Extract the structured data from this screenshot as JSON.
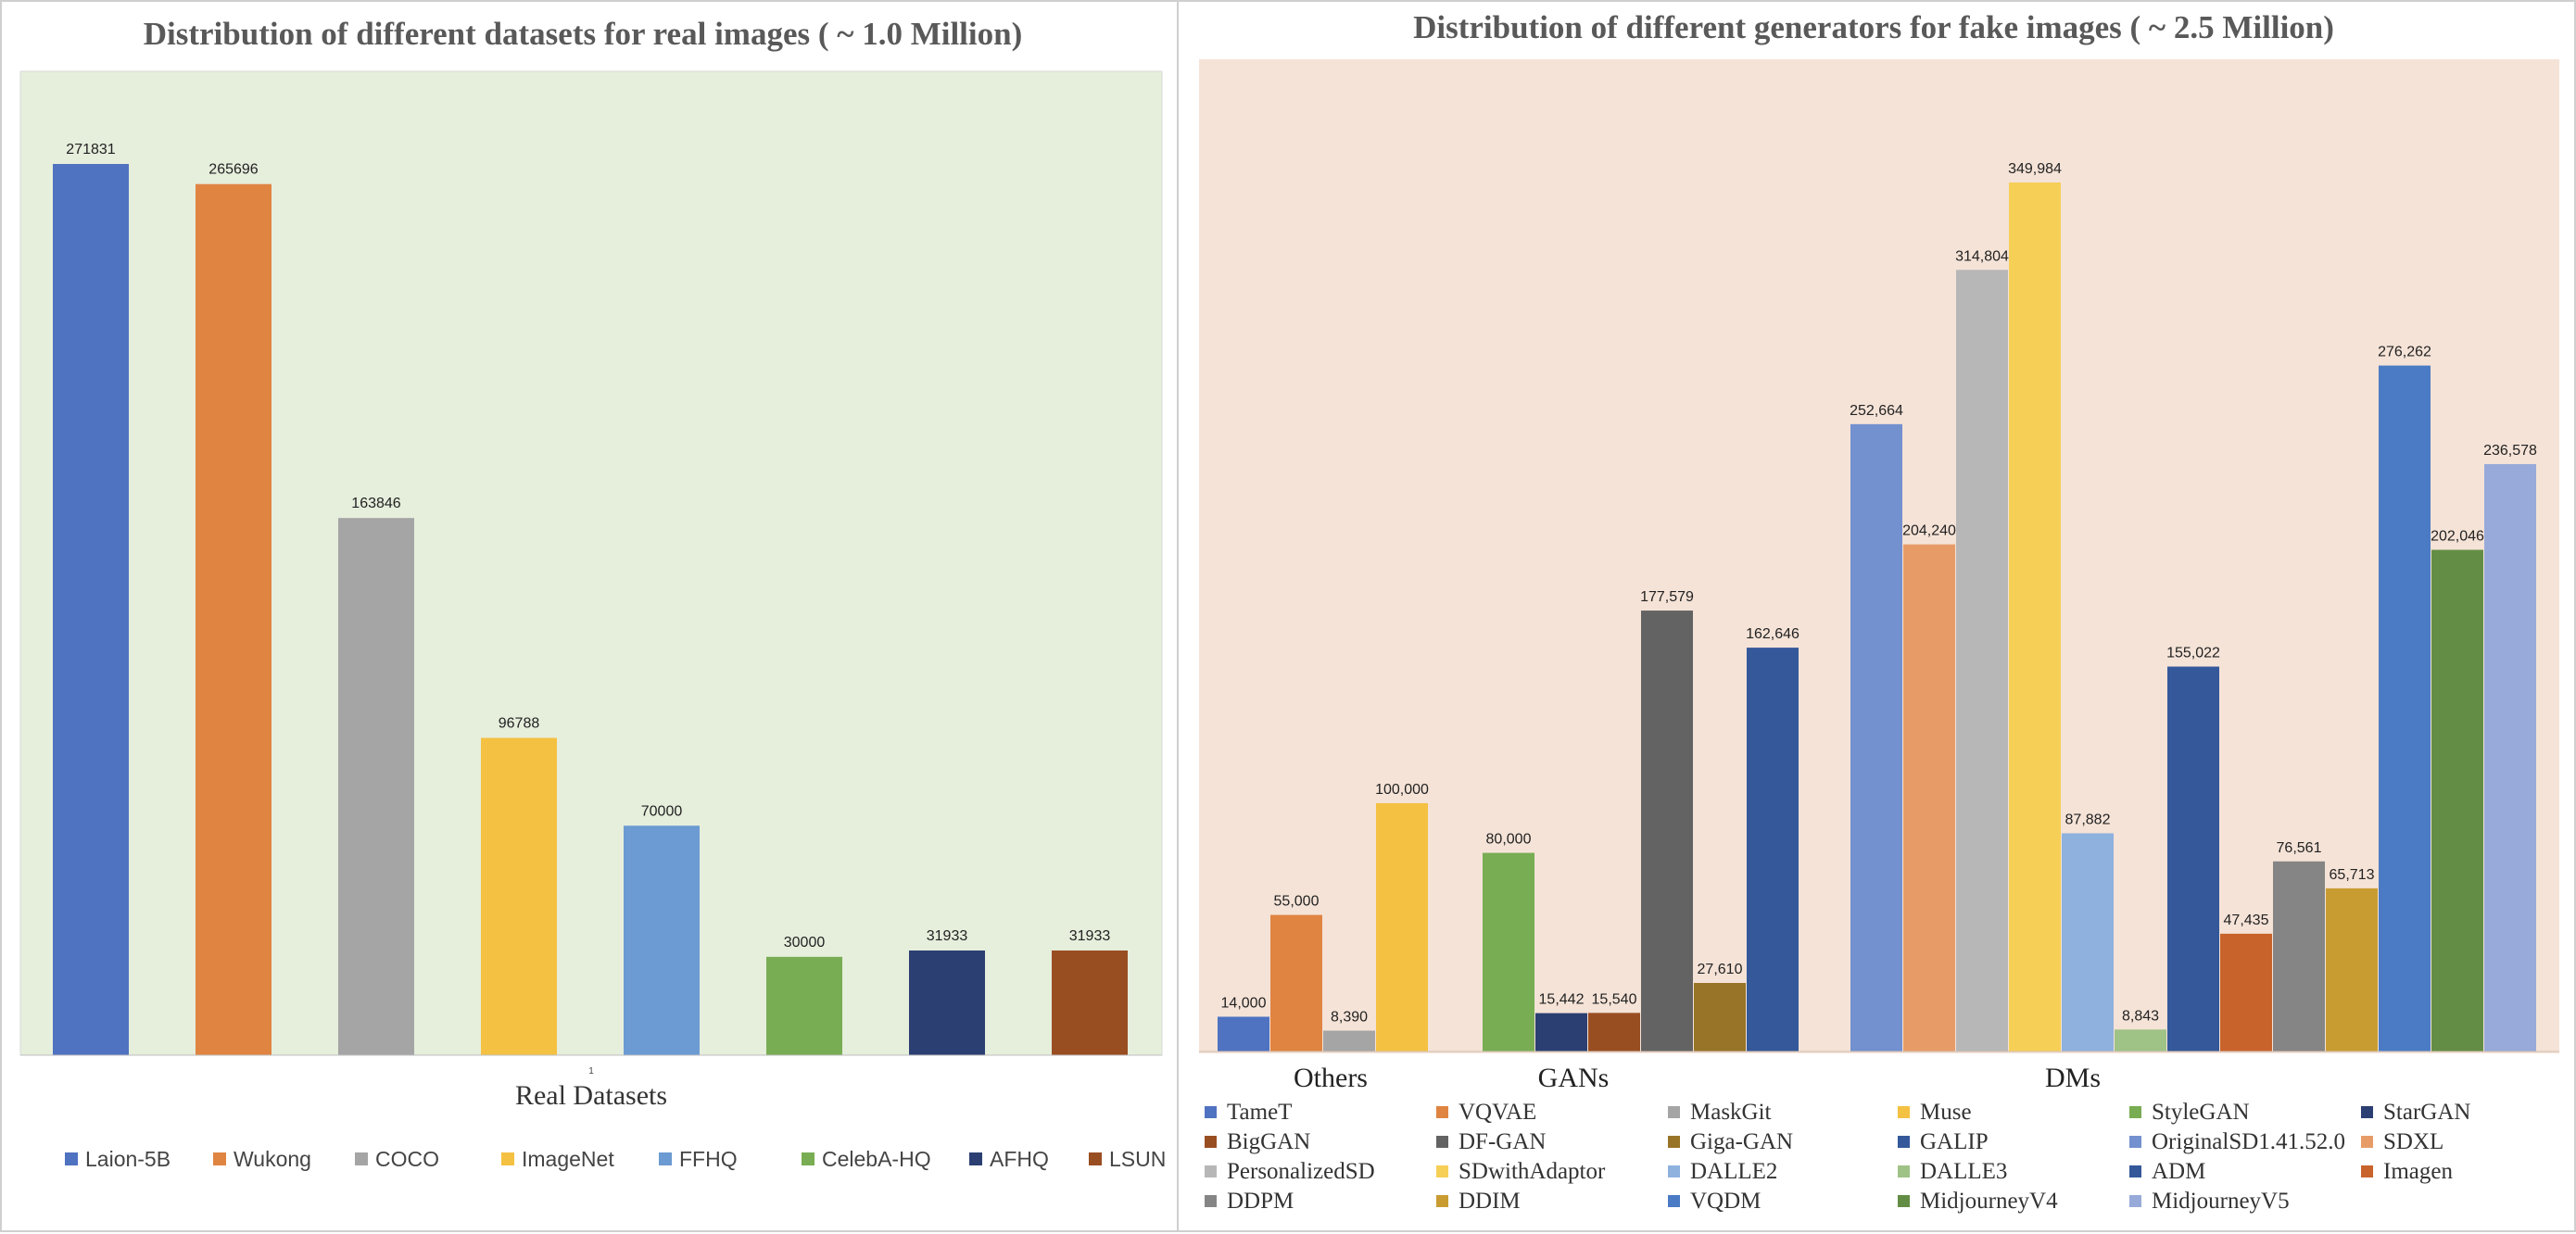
{
  "chart_data": [
    {
      "type": "bar",
      "title": "Distribution of different datasets for real images ( ~ 1.0 Million)",
      "xlabel": "Real Datasets",
      "ylabel": "",
      "tick_label": "1",
      "ylim": [
        0,
        300000
      ],
      "legend_position": "bottom",
      "background": "#e6eedc",
      "categories": [
        "Laion-5B",
        "Wukong",
        "COCO",
        "ImageNet",
        "FFHQ",
        "CelebA-HQ",
        "AFHQ",
        "LSUN"
      ],
      "values": [
        271831,
        265696,
        163846,
        96788,
        70000,
        30000,
        31933,
        31933
      ],
      "labels": [
        "271831",
        "265696",
        "163846",
        "96788",
        "70000",
        "30000",
        "31933",
        "31933"
      ],
      "colors": [
        "#4f72c1",
        "#e08442",
        "#a5a5a5",
        "#f4c142",
        "#6b9bd2",
        "#78ad53",
        "#2b3f72",
        "#994e22"
      ]
    },
    {
      "type": "bar",
      "title": "Distribution of different generators for fake images ( ~ 2.5 Million)",
      "xlabel": "",
      "ylabel": "",
      "ylim": [
        0,
        380000
      ],
      "legend_position": "bottom",
      "background": "#f5e3d7",
      "groups": [
        {
          "name": "Others",
          "members": [
            "TameT",
            "VQVAE",
            "MaskGit",
            "Muse"
          ]
        },
        {
          "name": "GANs",
          "members": [
            "StyleGAN",
            "StarGAN",
            "BigGAN",
            "DF-GAN",
            "Giga-GAN",
            "GALIP"
          ]
        },
        {
          "name": "DMs",
          "members": [
            "OriginalSD1.41.52.0",
            "SDXL",
            "PersonalizedSD",
            "SDwithAdaptor",
            "DALLE2",
            "DALLE3",
            "ADM",
            "Imagen",
            "DDPM",
            "DDIM",
            "VQDM",
            "MidjourneyV4",
            "MidjourneyV5"
          ]
        }
      ],
      "series": [
        {
          "name": "TameT",
          "value": 14000,
          "label": "14,000",
          "color": "#4f72c1"
        },
        {
          "name": "VQVAE",
          "value": 55000,
          "label": "55,000",
          "color": "#e08442"
        },
        {
          "name": "MaskGit",
          "value": 8390,
          "label": "8,390",
          "color": "#a5a5a5"
        },
        {
          "name": "Muse",
          "value": 100000,
          "label": "100,000",
          "color": "#f4c142"
        },
        {
          "name": "StyleGAN",
          "value": 80000,
          "label": "80,000",
          "color": "#78ad53"
        },
        {
          "name": "StarGAN",
          "value": 15442,
          "label": "15,442",
          "color": "#2b3f72"
        },
        {
          "name": "BigGAN",
          "value": 15540,
          "label": "15,540",
          "color": "#994e22"
        },
        {
          "name": "DF-GAN",
          "value": 177579,
          "label": "177,579",
          "color": "#636363"
        },
        {
          "name": "Giga-GAN",
          "value": 27610,
          "label": "27,610",
          "color": "#987428"
        },
        {
          "name": "GALIP",
          "value": 162646,
          "label": "162,646",
          "color": "#34589a"
        },
        {
          "name": "OriginalSD1.41.52.0",
          "value": 252664,
          "label": "252,664",
          "color": "#7390cf"
        },
        {
          "name": "SDXL",
          "value": 204240,
          "label": "204,240",
          "color": "#e79c68"
        },
        {
          "name": "PersonalizedSD",
          "value": 314804,
          "label": "314,804",
          "color": "#b7b7b7"
        },
        {
          "name": "SDwithAdaptor",
          "value": 349984,
          "label": "349,984",
          "color": "#f6cf57"
        },
        {
          "name": "DALLE2",
          "value": 87882,
          "label": "87,882",
          "color": "#8fb1de"
        },
        {
          "name": "DALLE3",
          "value": 8843,
          "label": "8,843",
          "color": "#9fc287"
        },
        {
          "name": "ADM",
          "value": 155022,
          "label": "155,022",
          "color": "#34589a"
        },
        {
          "name": "Imagen",
          "value": 47435,
          "label": "47,435",
          "color": "#c8632c"
        },
        {
          "name": "DDPM",
          "value": 76561,
          "label": "76,561",
          "color": "#858585"
        },
        {
          "name": "DDIM",
          "value": 65713,
          "label": "65,713",
          "color": "#c99c32"
        },
        {
          "name": "VQDM",
          "value": 276262,
          "label": "276,262",
          "color": "#4a7bc4"
        },
        {
          "name": "MidjourneyV4",
          "value": 202046,
          "label": "202,046",
          "color": "#638d45"
        },
        {
          "name": "MidjourneyV5",
          "value": 236578,
          "label": "236,578",
          "color": "#97aad9"
        }
      ]
    }
  ]
}
